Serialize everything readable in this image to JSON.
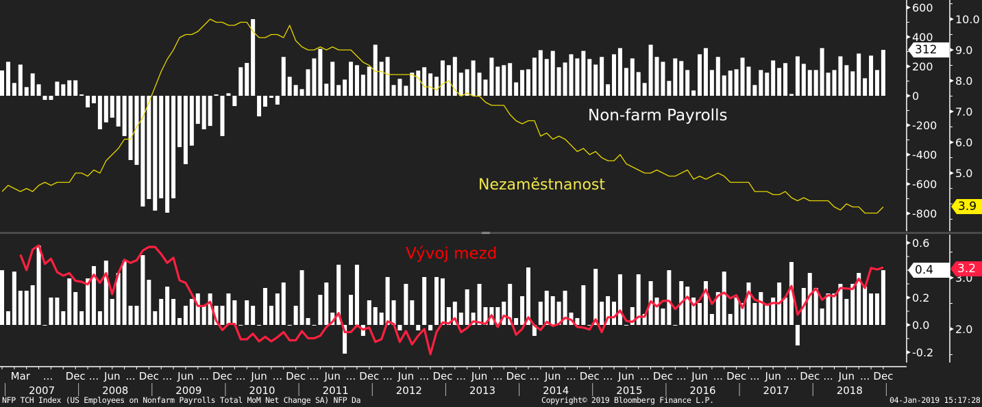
{
  "colors": {
    "background": "#212121",
    "bars": "#ffffff",
    "unemployment_line": "#e8d600",
    "wage_line": "#ff2040",
    "wage_label": "#ff0000",
    "axis": "#ffffff",
    "divider": "#4a4a4a"
  },
  "annotations": {
    "payrolls": "Non-farm Payrolls",
    "unemployment": "Nezaměstnanost",
    "wages": "Vývoj mezd"
  },
  "last_value_tags": {
    "payrolls": "312",
    "unemployment": "3.9",
    "wage_mom": "0.4",
    "wage_yoy": "3.2"
  },
  "footer": {
    "left": "NFP TCH Index (US Employees on Nonfarm Payrolls Total MoM Net Change SA) NFP  Da",
    "center": "Copyright© 2019 Bloomberg Finance L.P.",
    "right": "04-Jan-2019 15:17:28"
  },
  "x_axis": {
    "first_month": "2006-12",
    "last_month": "2018-12",
    "frequency": "monthly",
    "month_labels": [
      {
        "month": "2007-03",
        "label": "Mar"
      },
      {
        "month": "2007-12",
        "label": "Dec"
      },
      {
        "month": "2008-06",
        "label": "Jun"
      },
      {
        "month": "2008-12",
        "label": "Dec"
      },
      {
        "month": "2009-06",
        "label": "Jun"
      },
      {
        "month": "2009-12",
        "label": "Dec"
      },
      {
        "month": "2010-06",
        "label": "Jun"
      },
      {
        "month": "2010-12",
        "label": "Dec"
      },
      {
        "month": "2011-06",
        "label": "Jun"
      },
      {
        "month": "2011-12",
        "label": "Dec"
      },
      {
        "month": "2012-06",
        "label": "Jun"
      },
      {
        "month": "2012-12",
        "label": "Dec"
      },
      {
        "month": "2013-06",
        "label": "Jun"
      },
      {
        "month": "2013-12",
        "label": "Dec"
      },
      {
        "month": "2014-06",
        "label": "Jun"
      },
      {
        "month": "2014-12",
        "label": "Dec"
      },
      {
        "month": "2015-06",
        "label": "Jun"
      },
      {
        "month": "2015-12",
        "label": "Dec"
      },
      {
        "month": "2016-06",
        "label": "Jun"
      },
      {
        "month": "2016-12",
        "label": "Dec"
      },
      {
        "month": "2017-06",
        "label": "Jun"
      },
      {
        "month": "2017-12",
        "label": "Dec"
      },
      {
        "month": "2018-06",
        "label": "Jun"
      },
      {
        "month": "2018-12",
        "label": "Dec"
      }
    ],
    "ellipsis": "...",
    "year_labels": [
      "2007",
      "2008",
      "2009",
      "2010",
      "2011",
      "2012",
      "2013",
      "2014",
      "2015",
      "2016",
      "2017",
      "2018"
    ]
  },
  "chart_data": [
    {
      "type": "bar+line",
      "panel": "top",
      "left_axis": {
        "ticks": [
          "600",
          "400",
          "200",
          "0",
          "-200",
          "-400",
          "-600",
          "-800"
        ],
        "tick_values": [
          600,
          400,
          200,
          0,
          -200,
          -400,
          -600,
          -800
        ],
        "range": [
          -850,
          610
        ]
      },
      "right_axis": {
        "ticks": [
          "10.0",
          "9.0",
          "8.0",
          "7.0",
          "6.0",
          "5.0"
        ],
        "tick_values": [
          10,
          9,
          8,
          7,
          6,
          5
        ],
        "range": [
          3.2,
          10.6
        ]
      },
      "series": [
        {
          "name": "Non-farm Payrolls",
          "type": "bar",
          "axis": "left",
          "values": [
            172,
            231,
            87,
            212,
            59,
            152,
            78,
            -28,
            -28,
            96,
            78,
            105,
            105,
            9,
            -79,
            -51,
            -228,
            -181,
            -149,
            -209,
            -274,
            -437,
            -470,
            -753,
            -702,
            -781,
            -697,
            -795,
            -697,
            -349,
            -465,
            -339,
            -191,
            -228,
            -205,
            9,
            -274,
            17,
            -70,
            194,
            223,
            521,
            -140,
            -74,
            -14,
            -60,
            264,
            129,
            73,
            45,
            180,
            254,
            319,
            82,
            231,
            73,
            110,
            231,
            208,
            143,
            198,
            347,
            231,
            264,
            73,
            115,
            68,
            157,
            171,
            194,
            152,
            129,
            240,
            208,
            264,
            157,
            180,
            240,
            157,
            110,
            259,
            198,
            208,
            222,
            91,
            175,
            180,
            259,
            310,
            250,
            305,
            194,
            226,
            282,
            254,
            305,
            250,
            212,
            264,
            78,
            282,
            324,
            189,
            254,
            161,
            87,
            347,
            264,
            231,
            101,
            254,
            236,
            175,
            36,
            282,
            324,
            175,
            264,
            138,
            171,
            180,
            259,
            198,
            73,
            175,
            157,
            240,
            189,
            222,
            12,
            268,
            217,
            175,
            175,
            324,
            157,
            175,
            268,
            208,
            166,
            287,
            119,
            273,
            175,
            312
          ]
        },
        {
          "name": "Nezaměstnanost",
          "type": "line",
          "axis": "right",
          "values": [
            4.4,
            4.6,
            4.5,
            4.4,
            4.5,
            4.4,
            4.6,
            4.7,
            4.6,
            4.7,
            4.7,
            4.7,
            5.0,
            5.0,
            4.9,
            5.1,
            5.0,
            5.4,
            5.6,
            5.8,
            6.1,
            6.1,
            6.5,
            6.8,
            7.3,
            7.8,
            8.3,
            8.7,
            9.0,
            9.4,
            9.5,
            9.5,
            9.6,
            9.8,
            10.0,
            9.9,
            9.9,
            9.8,
            9.8,
            9.9,
            9.9,
            9.6,
            9.4,
            9.4,
            9.5,
            9.5,
            9.4,
            9.8,
            9.3,
            9.1,
            9.0,
            9.0,
            9.1,
            9.0,
            9.1,
            9.0,
            9.0,
            9.0,
            8.8,
            8.6,
            8.5,
            8.3,
            8.3,
            8.2,
            8.2,
            8.2,
            8.2,
            8.2,
            8.1,
            7.8,
            7.8,
            7.7,
            7.9,
            8.0,
            7.7,
            7.5,
            7.6,
            7.5,
            7.5,
            7.3,
            7.2,
            7.2,
            7.2,
            6.9,
            6.7,
            6.6,
            6.7,
            6.7,
            6.2,
            6.3,
            6.1,
            6.2,
            6.1,
            5.9,
            5.7,
            5.8,
            5.6,
            5.7,
            5.5,
            5.4,
            5.4,
            5.6,
            5.3,
            5.2,
            5.1,
            5.0,
            5.0,
            5.1,
            5.0,
            4.9,
            4.9,
            5.0,
            5.1,
            4.8,
            4.9,
            4.8,
            4.9,
            5.0,
            4.9,
            4.7,
            4.7,
            4.7,
            4.7,
            4.4,
            4.4,
            4.4,
            4.3,
            4.3,
            4.4,
            4.2,
            4.1,
            4.2,
            4.1,
            4.1,
            4.1,
            4.1,
            3.9,
            3.8,
            4.0,
            3.9,
            3.9,
            3.7,
            3.7,
            3.7,
            3.9
          ]
        }
      ]
    },
    {
      "type": "bar+line",
      "panel": "bottom",
      "left_axis": {
        "ticks": [
          "0.6",
          "0.2",
          "0.0",
          "-0.2"
        ],
        "tick_values": [
          0.6,
          0.2,
          0.0,
          -0.2
        ],
        "range": [
          -0.27,
          0.65
        ]
      },
      "right_axis": {
        "ticks": [
          "3.0",
          "2.0"
        ],
        "tick_values": [
          3.0,
          2.0
        ],
        "range": [
          1.35,
          3.85
        ]
      },
      "series": [
        {
          "type": "bar",
          "axis": "left",
          "values": [
            0.4,
            0.1,
            0.39,
            0.25,
            0.25,
            0.29,
            0.58,
            0.0,
            0.2,
            0.2,
            0.1,
            0.34,
            0.24,
            0.1,
            0.34,
            0.43,
            0.1,
            0.47,
            0.19,
            0.38,
            0.47,
            0.14,
            0.14,
            0.51,
            0.33,
            0.1,
            0.19,
            0.28,
            0.19,
            0.05,
            0.14,
            0.19,
            0.23,
            0.14,
            0.23,
            0.14,
            0.14,
            0.23,
            0.18,
            0.0,
            0.18,
            0.14,
            0.0,
            0.27,
            0.14,
            0.23,
            0.31,
            0.0,
            0.14,
            0.4,
            0.05,
            0.0,
            0.22,
            0.31,
            0.09,
            0.44,
            -0.21,
            0.22,
            0.44,
            -0.08,
            0.18,
            0.13,
            0.09,
            0.35,
            0.18,
            -0.04,
            0.3,
            0.18,
            -0.04,
            0.35,
            -0.04,
            0.35,
            0.34,
            0.13,
            0.17,
            0.09,
            0.26,
            0.09,
            0.3,
            0.13,
            0.13,
            0.13,
            0.17,
            0.3,
            0.05,
            0.21,
            0.42,
            -0.08,
            0.17,
            0.25,
            0.21,
            0.17,
            0.25,
            0.09,
            0.05,
            0.29,
            0.0,
            0.41,
            0.17,
            0.21,
            0.17,
            0.37,
            0.0,
            0.13,
            0.37,
            0.08,
            0.32,
            0.2,
            0.12,
            0.4,
            0.0,
            0.32,
            0.28,
            0.2,
            0.16,
            0.32,
            0.08,
            0.24,
            0.39,
            0.08,
            0.2,
            0.16,
            0.31,
            0.16,
            0.24,
            0.15,
            0.2,
            0.31,
            0.2,
            0.46,
            -0.15,
            0.27,
            0.38,
            0.27,
            0.12,
            0.23,
            0.23,
            0.3,
            0.19,
            0.3,
            0.38,
            0.28,
            0.23,
            0.23,
            0.4
          ]
        },
        {
          "name": "Vývoj mezd",
          "type": "line",
          "axis": "right",
          "values": [
            null,
            null,
            null,
            3.45,
            3.15,
            3.55,
            3.63,
            3.27,
            3.37,
            3.11,
            3.04,
            3.09,
            2.94,
            2.92,
            2.87,
            3.06,
            2.9,
            3.09,
            2.68,
            3.09,
            3.35,
            3.29,
            3.34,
            3.53,
            3.6,
            3.6,
            3.46,
            3.29,
            3.39,
            2.95,
            2.9,
            2.68,
            2.45,
            2.45,
            2.53,
            2.16,
            1.98,
            2.1,
            2.1,
            1.8,
            1.8,
            1.91,
            1.76,
            1.85,
            1.76,
            1.84,
            1.94,
            1.78,
            1.78,
            1.96,
            1.82,
            1.82,
            1.87,
            2.04,
            2.14,
            2.31,
            1.94,
            1.94,
            2.07,
            1.99,
            2.03,
            1.75,
            1.8,
            2.15,
            2.1,
            1.75,
            1.96,
            1.7,
            1.87,
            2.0,
            1.51,
            1.94,
            2.13,
            2.11,
            2.21,
            1.94,
            2.02,
            2.15,
            2.13,
            2.1,
            2.27,
            2.04,
            2.26,
            2.21,
            1.89,
            2.0,
            2.23,
            2.07,
            1.98,
            2.14,
            2.06,
            2.1,
            2.22,
            2.18,
            2.04,
            2.03,
            1.99,
            2.19,
            1.94,
            2.23,
            2.23,
            2.36,
            2.16,
            2.14,
            2.24,
            2.24,
            2.54,
            2.44,
            2.55,
            2.55,
            2.39,
            2.51,
            2.63,
            2.46,
            2.57,
            2.77,
            2.49,
            2.65,
            2.71,
            2.6,
            2.66,
            2.41,
            2.73,
            2.57,
            2.53,
            2.47,
            2.51,
            2.5,
            2.62,
            2.84,
            2.28,
            2.45,
            2.66,
            2.79,
            2.57,
            2.66,
            2.64,
            2.8,
            2.79,
            2.78,
            2.98,
            2.8,
            3.19,
            3.16,
            3.2
          ]
        }
      ]
    }
  ]
}
